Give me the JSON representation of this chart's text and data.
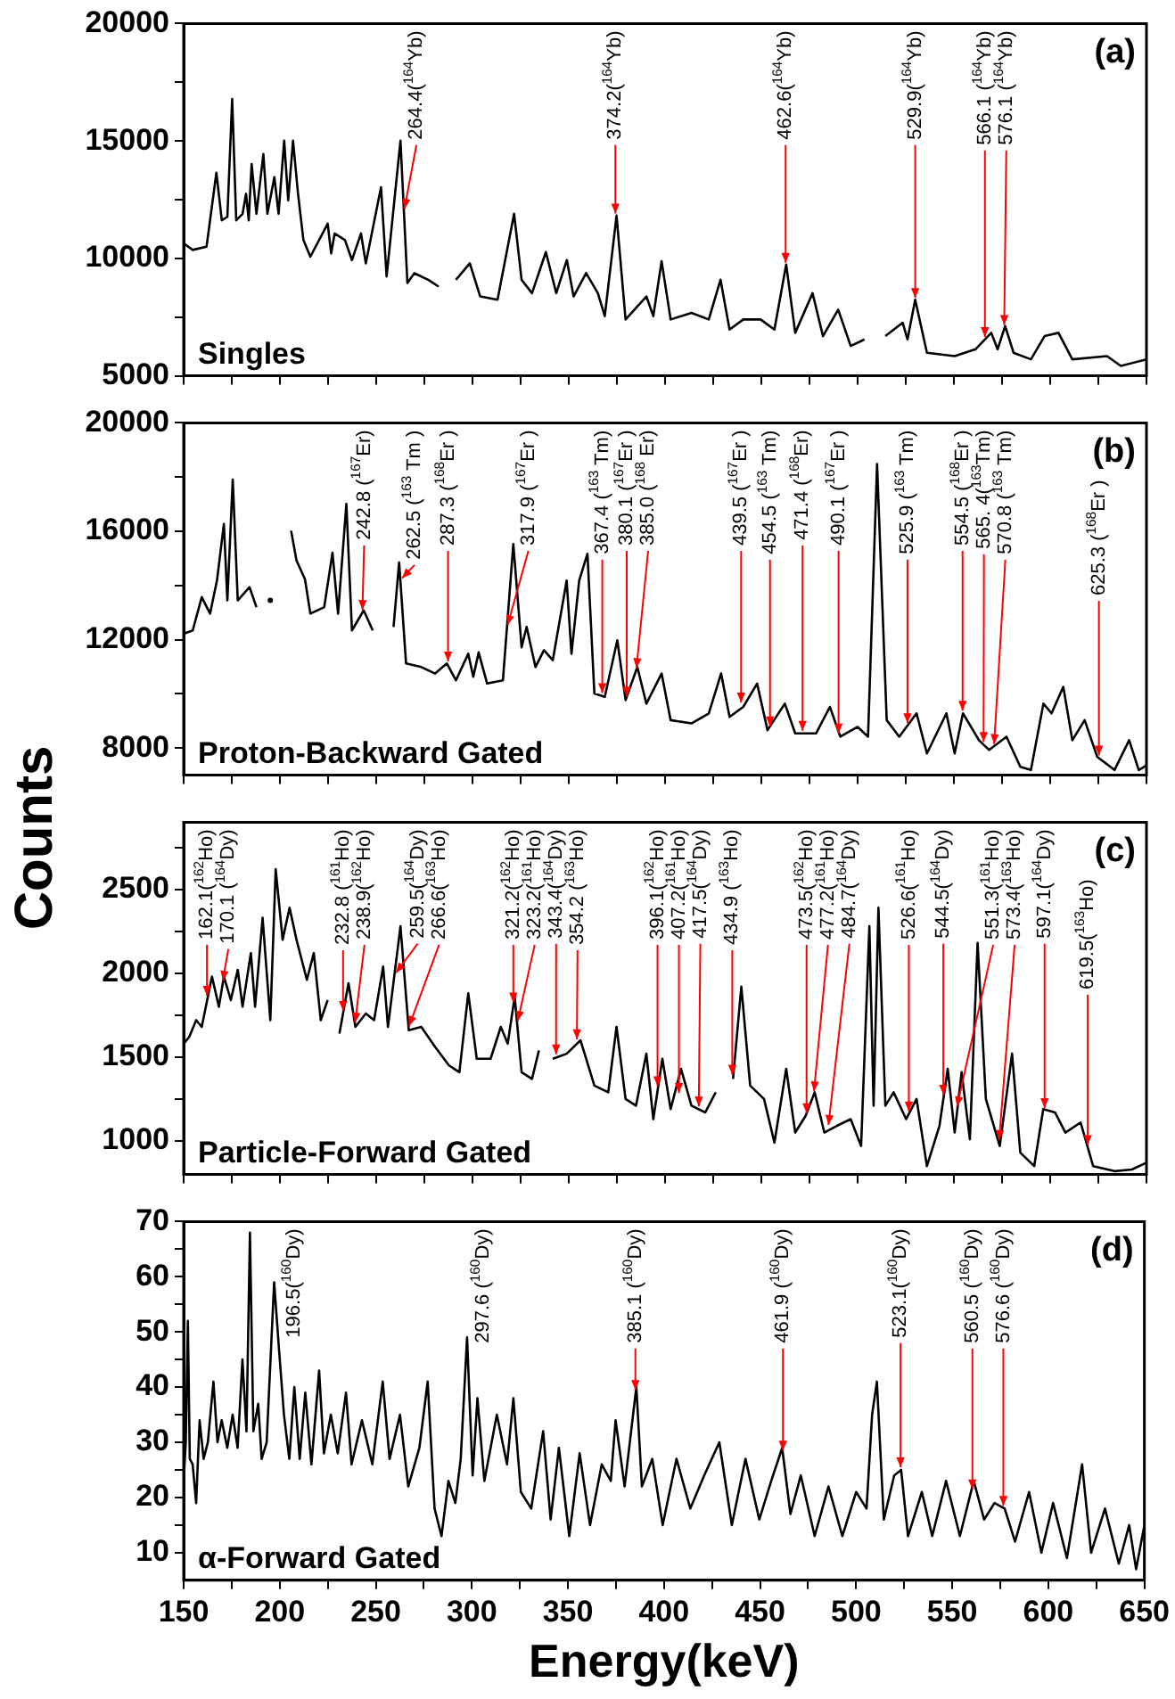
{
  "chart_data": [
    {
      "type": "line",
      "xlim": [
        150,
        650
      ],
      "ylim": [
        5000,
        20000
      ],
      "xticks": [
        150,
        {
          "value": 175,
          "label": null
        },
        200,
        {
          "value": 225,
          "label": null
        },
        250,
        {
          "value": 275,
          "label": null
        },
        300,
        {
          "value": 325,
          "label": null
        },
        350,
        {
          "value": 375,
          "label": null
        },
        400,
        {
          "value": 425,
          "label": null
        },
        450,
        {
          "value": 475,
          "label": null
        },
        500,
        {
          "value": 525,
          "label": null
        },
        550,
        {
          "value": 575,
          "label": null
        },
        600,
        {
          "value": 625,
          "label": null
        },
        650
      ],
      "yticks": [
        5000,
        {
          "value": 7500,
          "label": null
        },
        10000,
        {
          "value": 12500,
          "label": null
        },
        15000,
        {
          "value": 17500,
          "label": null
        },
        20000
      ],
      "tick_labels": "y",
      "legend": false,
      "series": [
        {
          "color": "#000000",
          "x": [
            150,
            154.7,
            161.9,
            167,
            169.8,
            172.7,
            175.2,
            177.3,
            180.6,
            182.4,
            183.8,
            185.3,
            187.8,
            191.4,
            193.5,
            197.1,
            199.3,
            202.2,
            204.3,
            206.8,
            209.4,
            212.2,
            215.8,
            224.8,
            226.6,
            228.4,
            233.8,
            237.4,
            242.1,
            244.6,
            252.5,
            255.4,
            262.6,
            266.2,
            269.8,
            277,
            282.4,
            287.8,
            291.4,
            298.6,
            304,
            313,
            321.6,
            325.5,
            330.9,
            338.1,
            343.5,
            349,
            352.5,
            359,
            365.1,
            368.7,
            374.8,
            379.5,
            390.3,
            393.9,
            398.2,
            402.9,
            413.7,
            422.7,
            428.8,
            433.5,
            440.6,
            449.6,
            456.8,
            462.9,
            467.6,
            476.6,
            482,
            489.9,
            496.4,
            503.6,
            509,
            514.4,
            523.4,
            525.9,
            529.9,
            536,
            550.4,
            561.2,
            569.4,
            572.7,
            576.6,
            581,
            590,
            597.1,
            604.3,
            611.5,
            629.5,
            636.7,
            650
          ],
          "values": [
            10640,
            10360,
            10500,
            13650,
            11620,
            11770,
            16790,
            11620,
            11900,
            12750,
            11620,
            14020,
            11900,
            14440,
            11900,
            13460,
            11900,
            15010,
            12470,
            15010,
            12750,
            10780,
            10070,
            11480,
            10210,
            11060,
            10780,
            9930,
            11060,
            9790,
            13030,
            9230,
            15010,
            8950,
            9370,
            9090,
            8800,
            null,
            9090,
            9790,
            8380,
            8240,
            11900,
            9090,
            8520,
            10270,
            8520,
            9930,
            8380,
            9370,
            8520,
            7540,
            11820,
            7400,
            8380,
            7540,
            9880,
            7400,
            7680,
            7400,
            9090,
            6970,
            7400,
            7400,
            6970,
            9740,
            6830,
            8520,
            6690,
            7820,
            6270,
            6550,
            null,
            6690,
            7260,
            6550,
            8240,
            5980,
            5840,
            6130,
            6830,
            6130,
            7120,
            5980,
            5700,
            6690,
            6830,
            5700,
            5840,
            5420,
            5700
          ]
        }
      ],
      "annotations": [
        "(a)",
        "Singles",
        {
          "text": "264.4($^{164}$Yb)",
          "x": 264.4,
          "y": 12000
        },
        {
          "text": "374.2($^{164}$Yb)",
          "x": 374.2,
          "y": 11800
        },
        {
          "text": "462.6($^{164}$Yb)",
          "x": 462.6,
          "y": 9700
        },
        {
          "text": "529.9($^{164}$Yb)",
          "x": 529.9,
          "y": 8200
        },
        {
          "text": "566.1 ($^{164}$Yb)",
          "x": 566.1,
          "y": 6540
        },
        {
          "text": "576.1 ($^{164}$Yb)",
          "x": 576.1,
          "y": 7050
        }
      ]
    },
    {
      "type": "line",
      "xlim": [
        150,
        650
      ],
      "ylim": [
        7000,
        20000
      ],
      "ylabel": "Counts",
      "xticks": [
        150,
        {
          "value": 175,
          "label": null
        },
        200,
        {
          "value": 225,
          "label": null
        },
        250,
        {
          "value": 275,
          "label": null
        },
        300,
        {
          "value": 325,
          "label": null
        },
        350,
        {
          "value": 375,
          "label": null
        },
        400,
        {
          "value": 425,
          "label": null
        },
        450,
        {
          "value": 475,
          "label": null
        },
        500,
        {
          "value": 525,
          "label": null
        },
        550,
        {
          "value": 575,
          "label": null
        },
        600,
        {
          "value": 625,
          "label": null
        },
        650
      ],
      "yticks": [
        8000,
        {
          "value": 10000,
          "label": null
        },
        12000,
        {
          "value": 14000,
          "label": null
        },
        16000,
        {
          "value": 18000,
          "label": null
        },
        20000
      ],
      "tick_labels": "y",
      "legend": false,
      "series": [
        {
          "color": "#000000",
          "x": [
            150,
            154.7,
            159.4,
            163.7,
            167.3,
            170.9,
            172.7,
            175.5,
            178.1,
            184.2,
            187.8,
            191.4,
            195,
            202.2,
            205.8,
            208.6,
            213,
            215.8,
            223,
            227.3,
            230.2,
            234.5,
            237.4,
            243.5,
            248.2,
            254,
            259,
            261.9,
            265.5,
            273.4,
            280.6,
            286.7,
            291.4,
            297.8,
            300.4,
            303.2,
            307.6,
            315.8,
            321.2,
            325.5,
            328.1,
            332.7,
            337.1,
            341.7,
            348.9,
            351.4,
            355.4,
            359.7,
            363.3,
            368.7,
            375.2,
            379.5,
            385.6,
            390.3,
            398.2,
            402.9,
            413.7,
            422.7,
            429.1,
            433.5,
            440.6,
            447.8,
            453.2,
            462.2,
            467.6,
            478.4,
            485.6,
            491,
            500,
            505.4,
            510.1,
            515.1,
            521.6,
            530.6,
            536,
            546.1,
            550.4,
            554.7,
            563,
            568.3,
            577.3,
            584.5,
            590,
            596.5,
            600.7,
            606.8,
            611.5,
            617.9,
            624.4,
            633.4,
            641,
            646,
            650
          ],
          "values": [
            12220,
            12340,
            13570,
            12960,
            14180,
            16270,
            13450,
            17910,
            13450,
            13940,
            13200,
            null,
            13450,
            null,
            16020,
            14920,
            14230,
            12960,
            13200,
            15210,
            12960,
            17010,
            12340,
            13080,
            12340,
            null,
            12470,
            14850,
            11120,
            10990,
            10750,
            11120,
            10500,
            11480,
            10630,
            11530,
            10380,
            10500,
            15530,
            11720,
            12470,
            10990,
            11610,
            11240,
            14180,
            11480,
            14180,
            15170,
            10010,
            9890,
            11980,
            9770,
            10990,
            9640,
            10750,
            9030,
            8910,
            9280,
            10750,
            9150,
            9520,
            10380,
            8660,
            9640,
            8540,
            8540,
            9520,
            8420,
            8780,
            8420,
            18480,
            9030,
            8420,
            9280,
            7800,
            9280,
            7800,
            9280,
            8290,
            7930,
            8420,
            7310,
            7190,
            9640,
            9280,
            10260,
            8290,
            9030,
            7680,
            7190,
            8290,
            7190,
            7360
          ]
        }
      ],
      "annotations": [
        "(b)",
        "Proton-Backward Gated",
        {
          "text": "242.8 ($^{167}$Er)",
          "x": 242.8,
          "y": 13000
        },
        {
          "text": "262.5 ($^{163}$ Tm )",
          "x": 262.5,
          "y": 14200
        },
        {
          "text": "287.3 ($^{168}$Er )",
          "x": 287.3,
          "y": 11100
        },
        {
          "text": "317.9 ($^{167}$Er )",
          "x": 317.9,
          "y": 12450
        },
        {
          "text": "367.4 ($^{163}$ Tm)",
          "x": 367.4,
          "y": 9930
        },
        {
          "text": "380.1 ($^{167}$Er )",
          "x": 380.1,
          "y": 9800
        },
        {
          "text": "385.0 ($^{168}$ Er)",
          "x": 385.0,
          "y": 10850
        },
        {
          "text": "439.5 ($^{167}$Er )",
          "x": 439.5,
          "y": 9580
        },
        {
          "text": "454.5 ($^{163}$ Tm)",
          "x": 454.5,
          "y": 8700
        },
        {
          "text": "471.4 ($^{168}$Er)",
          "x": 471.4,
          "y": 8540
        },
        {
          "text": "490.1 ($^{167}$Er )",
          "x": 490.1,
          "y": 8440
        },
        {
          "text": "525.9 ($^{163}$ Tm)",
          "x": 525.9,
          "y": 8820
        },
        {
          "text": "554.5 ($^{168}$Er )",
          "x": 554.5,
          "y": 9280
        },
        {
          "text": "565. 4($^{163}$Tm)",
          "x": 565.4,
          "y": 8130
        },
        {
          "text": "570.8 ($^{163}$ Tm)",
          "x": 570.8,
          "y": 8050
        },
        {
          "text": "625.3 ($^{168}$Er )",
          "x": 625.3,
          "y": 7630
        }
      ]
    },
    {
      "type": "line",
      "xlim": [
        150,
        650
      ],
      "ylim": [
        800,
        2900
      ],
      "xticks": [
        150,
        {
          "value": 175,
          "label": null
        },
        200,
        {
          "value": 225,
          "label": null
        },
        250,
        {
          "value": 275,
          "label": null
        },
        300,
        {
          "value": 325,
          "label": null
        },
        350,
        {
          "value": 375,
          "label": null
        },
        400,
        {
          "value": 425,
          "label": null
        },
        450,
        {
          "value": 475,
          "label": null
        },
        500,
        {
          "value": 525,
          "label": null
        },
        550,
        {
          "value": 575,
          "label": null
        },
        600,
        {
          "value": 625,
          "label": null
        },
        650
      ],
      "yticks": [
        1000,
        {
          "value": 1250,
          "label": null
        },
        1500,
        {
          "value": 1750,
          "label": null
        },
        2000,
        {
          "value": 2250,
          "label": null
        },
        2500,
        {
          "value": 2750,
          "label": null
        }
      ],
      "tick_labels": "y",
      "legend": false,
      "series": [
        {
          "color": "#000000",
          "x": [
            150,
            152.9,
            156.5,
            159.4,
            164.7,
            168.3,
            170.9,
            174.5,
            178.1,
            180.6,
            184.9,
            187.1,
            191,
            195,
            197.8,
            201.4,
            205,
            208.6,
            214,
            217.6,
            221.2,
            224.8,
            227.3,
            230.9,
            235.6,
            239.2,
            244.6,
            248.9,
            253.6,
            256.1,
            262.6,
            266.9,
            273.4,
            280.6,
            287.8,
            293.2,
            297.8,
            302.2,
            309.4,
            314.7,
            318.3,
            321.9,
            325.5,
            330.9,
            334.5,
            337.4,
            341.7,
            348.9,
            356.1,
            363.3,
            370.5,
            374.8,
            379.5,
            384.9,
            390.3,
            393.9,
            398.6,
            402.9,
            408.3,
            413.7,
            420.9,
            426.3,
            431,
            435.3,
            439.6,
            444.2,
            451.4,
            456.8,
            462.9,
            467.6,
            473,
            477.7,
            482.7,
            489.2,
            496.4,
            501.8,
            506.1,
            508.3,
            510.8,
            514.4,
            518.7,
            525.2,
            530.6,
            536,
            542.5,
            546.8,
            550.4,
            554,
            558.3,
            562.3,
            566.6,
            573.8,
            580.2,
            584.5,
            591.7,
            596.4,
            602.5,
            607.9,
            615.8,
            622.3,
            633.4,
            642.4,
            650
          ],
          "values": [
            1580,
            1620,
            1720,
            1680,
            1980,
            1800,
            1980,
            1840,
            2020,
            1800,
            2120,
            1800,
            2330,
            1720,
            2620,
            2200,
            2390,
            2200,
            1960,
            2120,
            1720,
            1840,
            null,
            1640,
            1940,
            1680,
            1760,
            1720,
            2040,
            1680,
            2280,
            1660,
            1680,
            1560,
            1450,
            1410,
            1880,
            1490,
            1490,
            1680,
            1580,
            1860,
            1410,
            1370,
            1540,
            null,
            1490,
            1520,
            1600,
            1330,
            1290,
            1680,
            1250,
            1210,
            1520,
            1130,
            1490,
            1190,
            1430,
            1210,
            1170,
            1290,
            null,
            1370,
            1920,
            1330,
            1250,
            990,
            1430,
            1050,
            1150,
            1290,
            1050,
            1090,
            1130,
            970,
            2280,
            1210,
            2390,
            1210,
            1290,
            1130,
            1250,
            850,
            1090,
            1430,
            1050,
            1410,
            1010,
            2180,
            1250,
            970,
            1520,
            930,
            850,
            1190,
            1170,
            1050,
            1110,
            850,
            820,
            830,
            870
          ]
        }
      ],
      "annotations": [
        "(c)",
        "Particle-Forward Gated",
        {
          "text": "162.1($^{162}$Ho)",
          "x": 162.1,
          "y": 1850
        },
        {
          "text": "170.1 ($^{164}$Dy)",
          "x": 170.1,
          "y": 1940
        },
        {
          "text": "232.8 ($^{161}$Ho)",
          "x": 232.8,
          "y": 1760
        },
        {
          "text": "238.9($^{162}$Ho)",
          "x": 238.9,
          "y": 1690
        },
        {
          "text": "259.5($^{164}$Dy)",
          "x": 259.5,
          "y": 1990
        },
        {
          "text": "266.6($^{163}$Ho)",
          "x": 266.6,
          "y": 1670
        },
        {
          "text": "321.2($^{162}$Ho)",
          "x": 321.2,
          "y": 1810
        },
        {
          "text": "323.2($^{161}$Ho)",
          "x": 323.2,
          "y": 1700
        },
        {
          "text": "343.4($^{164}$Dy)",
          "x": 343.4,
          "y": 1500
        },
        {
          "text": "354.2 ($^{163}$Ho)",
          "x": 354.2,
          "y": 1590
        },
        {
          "text": "396.1($^{162}$Ho)",
          "x": 396.1,
          "y": 1310
        },
        {
          "text": "407.2($^{161}$Ho)",
          "x": 407.2,
          "y": 1270
        },
        {
          "text": "417.5($^{164}$Dy)",
          "x": 417.5,
          "y": 1190
        },
        {
          "text": "434.9 ($^{163}$Ho)",
          "x": 434.9,
          "y": 1380
        },
        {
          "text": "473.5($^{162}$Ho)",
          "x": 473.5,
          "y": 1150
        },
        {
          "text": "477.2($^{161}$Ho)",
          "x": 477.2,
          "y": 1280
        },
        {
          "text": "484.7($^{164}$Dy)",
          "x": 484.7,
          "y": 1080
        },
        {
          "text": "526.6($^{161}$Ho)",
          "x": 526.6,
          "y": 1160
        },
        {
          "text": "544.5($^{164}$Dy)",
          "x": 544.5,
          "y": 1260
        },
        {
          "text": "551.3($^{161}$Ho)",
          "x": 551.3,
          "y": 1190
        },
        {
          "text": "573.4($^{163}$Ho)",
          "x": 573.4,
          "y": 990
        },
        {
          "text": "597.1($^{164}$Dy)",
          "x": 597.1,
          "y": 1180
        },
        {
          "text": "619.5($^{163}$Ho)",
          "x": 619.5,
          "y": 960
        }
      ]
    },
    {
      "type": "line",
      "xlim": [
        150,
        650
      ],
      "ylim": [
        5,
        70
      ],
      "xlabel": "Energy(keV)",
      "xticks": [
        150,
        {
          "value": 175,
          "label": null
        },
        200,
        {
          "value": 225,
          "label": null
        },
        250,
        {
          "value": 275,
          "label": null
        },
        300,
        {
          "value": 325,
          "label": null
        },
        350,
        {
          "value": 375,
          "label": null
        },
        400,
        {
          "value": 425,
          "label": null
        },
        450,
        {
          "value": 475,
          "label": null
        },
        500,
        {
          "value": 525,
          "label": null
        },
        550,
        {
          "value": 575,
          "label": null
        },
        600,
        {
          "value": 625,
          "label": null
        },
        650
      ],
      "yticks": [
        10,
        {
          "value": 15,
          "label": null
        },
        20,
        {
          "value": 25,
          "label": null
        },
        30,
        {
          "value": 35,
          "label": null
        },
        40,
        {
          "value": 45,
          "label": null
        },
        50,
        {
          "value": 55,
          "label": null
        },
        60,
        {
          "value": 65,
          "label": null
        },
        70
      ],
      "legend": false,
      "series": [
        {
          "color": "#000000",
          "x": [
            150,
            151.1,
            152.2,
            153.2,
            154.7,
            156.5,
            158.3,
            160.4,
            162.6,
            165.5,
            167.6,
            169.8,
            172.7,
            175.5,
            178.1,
            180.6,
            182.7,
            184.5,
            186.3,
            188.8,
            190.6,
            193.2,
            197.1,
            199.6,
            202.2,
            205,
            207.6,
            210.4,
            213.3,
            216.5,
            220.5,
            223,
            226.6,
            230.2,
            234.5,
            237.4,
            242.8,
            248.2,
            253.6,
            257.2,
            262.6,
            266.9,
            272.7,
            277,
            280.6,
            284.2,
            287.8,
            291.4,
            294.2,
            297.5,
            300.4,
            302.9,
            306.5,
            313,
            318.3,
            321.6,
            325.5,
            330.9,
            337.1,
            341,
            345.3,
            350.7,
            356.1,
            361.5,
            367.6,
            372.3,
            374.8,
            379.5,
            385.6,
            388.5,
            393.9,
            399.3,
            406.5,
            413.7,
            420.9,
            428.8,
            435.3,
            442.4,
            449.6,
            455.8,
            461.5,
            465.8,
            471.2,
            478.4,
            485.6,
            492.8,
            500,
            505.4,
            508.3,
            510.8,
            514.4,
            519.8,
            523.4,
            527,
            534.2,
            539.6,
            546.8,
            554,
            561.2,
            566.6,
            572,
            577.3,
            582.7,
            590,
            596.4,
            602.5,
            609.7,
            617.6,
            622.3,
            629.5,
            636.7,
            642.1,
            645.7,
            650
          ],
          "values": [
            23,
            30,
            52,
            27,
            26,
            19,
            34,
            27,
            30,
            41,
            30,
            34,
            29,
            35,
            29,
            45,
            32,
            68,
            32,
            37,
            27,
            30,
            59,
            47,
            35,
            27,
            40,
            27,
            39,
            26,
            43,
            28,
            35,
            28,
            39,
            26,
            34,
            26,
            41,
            27,
            35,
            22,
            29,
            41,
            18,
            13,
            23,
            19,
            27,
            49,
            24,
            38,
            23,
            35,
            26,
            38,
            21,
            18,
            32,
            16,
            29,
            13,
            28,
            15,
            26,
            23,
            34,
            22,
            40,
            22,
            27,
            15,
            27,
            18,
            24,
            30,
            15,
            27,
            16,
            23,
            29,
            17,
            24,
            13,
            22,
            13,
            21,
            18,
            35,
            41,
            16,
            24,
            25,
            13,
            21,
            13,
            23,
            13,
            23,
            16,
            19,
            18,
            12,
            21,
            10,
            19,
            9,
            26,
            10,
            18,
            8,
            15,
            7,
            15
          ]
        }
      ],
      "annotations": [
        "(d)",
        "α-Forward Gated",
        {
          "text": "196.5($^{160}$Dy)",
          "x": 196.5,
          "y": 55
        },
        {
          "text": "297.6 ($^{160}$Dy)",
          "x": 297.6,
          "y": 48
        },
        {
          "text": "385.1 ($^{160}$Dy)",
          "x": 385.1,
          "y": 39
        },
        {
          "text": "461.9 ($^{160}$Dy)",
          "x": 461.9,
          "y": 28
        },
        {
          "text": "523.1($^{160}$Dy)",
          "x": 523.1,
          "y": 25
        },
        {
          "text": "560.5 ($^{160}$Dy)",
          "x": 560.5,
          "y": 21
        },
        {
          "text": "576.6 ($^{160}$Dy)",
          "x": 576.6,
          "y": 18
        }
      ]
    }
  ]
}
